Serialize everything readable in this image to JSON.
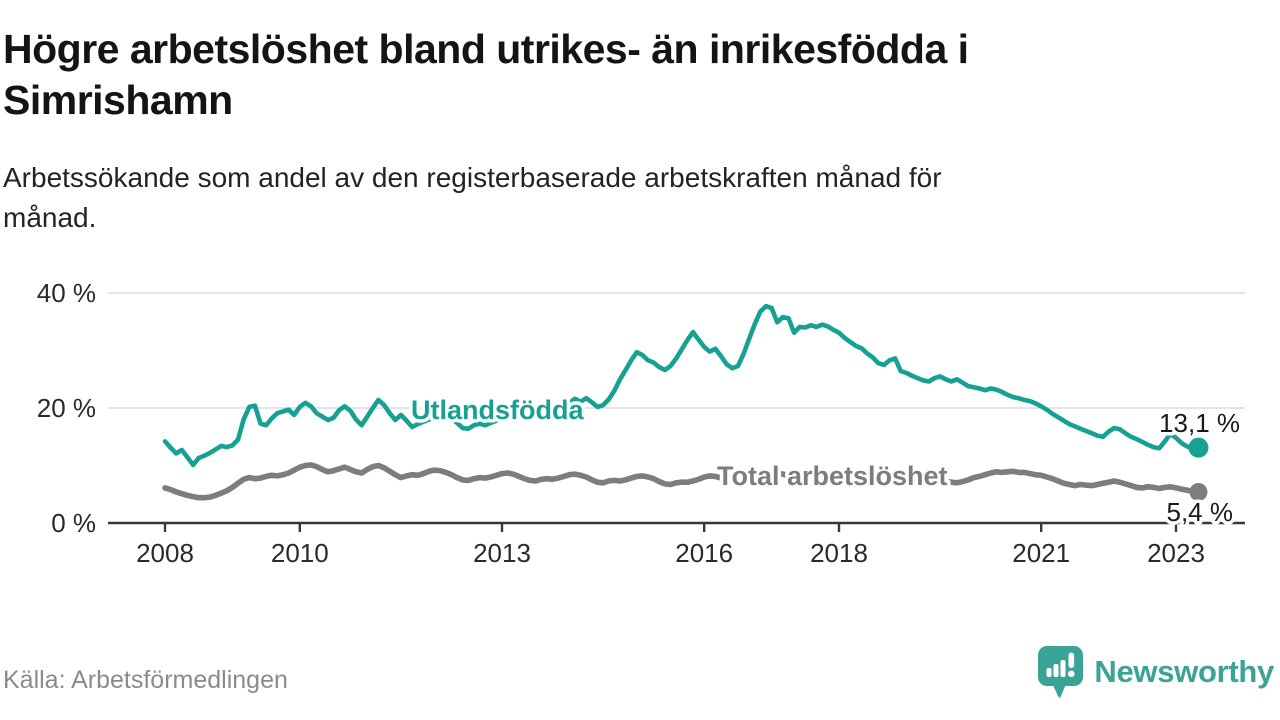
{
  "header": {
    "title_lines": [
      "Högre arbetslöshet bland utrikes- än inrikesfödda i",
      "Simrishamn"
    ],
    "subtitle_lines": [
      "Arbetssökande som andel av den registerbaserade arbetskraften månad för",
      "månad."
    ]
  },
  "chart_data": {
    "type": "line",
    "x_unit": "month",
    "x_start": "2008-01",
    "x_end": "2023-05",
    "grid": "horizontal",
    "ylim": [
      0,
      42
    ],
    "y_ticks": [
      {
        "value": 40,
        "label": "40 %"
      },
      {
        "value": 20,
        "label": "20 %"
      },
      {
        "value": 0,
        "label": "0 %"
      }
    ],
    "x_ticks": [
      {
        "year": 2008,
        "label": "2008"
      },
      {
        "year": 2010,
        "label": "2010"
      },
      {
        "year": 2013,
        "label": "2013"
      },
      {
        "year": 2016,
        "label": "2016"
      },
      {
        "year": 2018,
        "label": "2018"
      },
      {
        "year": 2021,
        "label": "2021"
      },
      {
        "year": 2023,
        "label": "2023"
      }
    ],
    "series": [
      {
        "name": "Utlandsfödda",
        "color": "#16a192",
        "end_label": "13,1 %",
        "end_value": 13.1,
        "values": [
          14.2,
          13.1,
          12.1,
          12.7,
          11.4,
          10.1,
          11.3,
          11.7,
          12.2,
          12.8,
          13.4,
          13.2,
          13.5,
          14.5,
          18.0,
          20.2,
          20.4,
          17.3,
          17.0,
          18.2,
          19.1,
          19.4,
          19.7,
          18.8,
          20.2,
          20.9,
          20.3,
          19.1,
          18.5,
          17.9,
          18.3,
          19.6,
          20.3,
          19.5,
          18.0,
          17.0,
          18.5,
          20.0,
          21.4,
          20.5,
          19.1,
          17.9,
          18.8,
          17.8,
          16.7,
          17.2,
          17.6,
          18.0,
          18.6,
          19.2,
          18.8,
          18.2,
          17.4,
          16.5,
          16.4,
          17.0,
          17.3,
          17.0,
          17.4,
          17.8,
          18.9,
          19.5,
          19.3,
          18.8,
          18.4,
          18.1,
          18.5,
          19.0,
          19.4,
          19.7,
          19.5,
          20.0,
          20.9,
          21.6,
          21.1,
          21.7,
          21.0,
          20.2,
          20.5,
          21.5,
          23.0,
          25.0,
          26.6,
          28.3,
          29.7,
          29.2,
          28.3,
          27.9,
          27.1,
          26.6,
          27.3,
          28.6,
          30.2,
          31.8,
          33.2,
          31.9,
          30.6,
          29.8,
          30.3,
          29.0,
          27.6,
          26.9,
          27.3,
          29.4,
          32.0,
          34.6,
          36.8,
          37.7,
          37.4,
          34.9,
          35.8,
          35.6,
          33.1,
          34.1,
          34.0,
          34.4,
          34.1,
          34.5,
          34.2,
          33.6,
          33.1,
          32.2,
          31.5,
          30.8,
          30.4,
          29.5,
          28.8,
          27.8,
          27.5,
          28.3,
          28.6,
          26.4,
          26.1,
          25.6,
          25.2,
          24.8,
          24.6,
          25.2,
          25.5,
          25.0,
          24.6,
          25.0,
          24.4,
          23.8,
          23.6,
          23.4,
          23.1,
          23.4,
          23.2,
          22.8,
          22.3,
          21.9,
          21.7,
          21.4,
          21.2,
          20.8,
          20.3,
          19.7,
          19.0,
          18.4,
          17.8,
          17.2,
          16.8,
          16.4,
          16.0,
          15.6,
          15.2,
          15.0,
          15.9,
          16.5,
          16.3,
          15.6,
          15.0,
          14.6,
          14.1,
          13.6,
          13.2,
          13.0,
          14.2,
          15.5,
          14.8,
          13.9,
          13.3,
          12.9,
          13.1
        ]
      },
      {
        "name": "Total arbetslöshet",
        "color": "#7d7d7d",
        "end_label": "5,4 %",
        "end_value": 5.4,
        "values": [
          6.1,
          5.8,
          5.4,
          5.1,
          4.8,
          4.6,
          4.4,
          4.4,
          4.5,
          4.8,
          5.2,
          5.6,
          6.2,
          6.9,
          7.6,
          7.9,
          7.7,
          7.8,
          8.1,
          8.3,
          8.2,
          8.4,
          8.7,
          9.2,
          9.7,
          10.0,
          10.1,
          9.8,
          9.3,
          8.9,
          9.1,
          9.4,
          9.7,
          9.3,
          8.9,
          8.7,
          9.3,
          9.8,
          10.0,
          9.6,
          9.0,
          8.4,
          7.9,
          8.2,
          8.4,
          8.3,
          8.6,
          9.0,
          9.2,
          9.1,
          8.8,
          8.4,
          7.9,
          7.5,
          7.4,
          7.7,
          7.9,
          7.8,
          8.0,
          8.3,
          8.6,
          8.7,
          8.5,
          8.1,
          7.7,
          7.4,
          7.3,
          7.6,
          7.7,
          7.6,
          7.8,
          8.1,
          8.4,
          8.5,
          8.3,
          8.0,
          7.5,
          7.1,
          7.0,
          7.3,
          7.4,
          7.3,
          7.5,
          7.8,
          8.1,
          8.2,
          8.0,
          7.7,
          7.2,
          6.8,
          6.7,
          7.0,
          7.1,
          7.1,
          7.3,
          7.6,
          8.0,
          8.2,
          8.1,
          7.8,
          7.4,
          7.1,
          7.0,
          7.3,
          7.5,
          7.6,
          7.8,
          8.1,
          8.5,
          8.7,
          8.5,
          8.2,
          7.8,
          7.4,
          7.3,
          7.6,
          7.5,
          7.6,
          7.8,
          8.1,
          8.5,
          8.6,
          8.4,
          8.0,
          7.6,
          7.2,
          7.1,
          7.4,
          7.3,
          7.2,
          7.4,
          7.7,
          8.0,
          8.1,
          7.9,
          7.6,
          7.3,
          7.0,
          6.9,
          7.2,
          7.1,
          7.0,
          7.2,
          7.5,
          7.9,
          8.1,
          8.4,
          8.7,
          8.9,
          8.8,
          8.9,
          9.0,
          8.8,
          8.8,
          8.6,
          8.4,
          8.3,
          8.0,
          7.7,
          7.3,
          6.9,
          6.7,
          6.5,
          6.7,
          6.6,
          6.5,
          6.7,
          6.9,
          7.1,
          7.3,
          7.1,
          6.8,
          6.5,
          6.2,
          6.1,
          6.3,
          6.2,
          6.0,
          6.2,
          6.3,
          6.1,
          5.9,
          5.7,
          5.5,
          5.4
        ]
      }
    ],
    "colors": {
      "grid": "#dcdcdc",
      "axis": "#383838",
      "tick_text": "#2a2a2a",
      "annotation_text": "#1a1a1a"
    }
  },
  "footer": {
    "source": "Källa: Arbetsförmedlingen",
    "brand": "Newsworthy"
  }
}
